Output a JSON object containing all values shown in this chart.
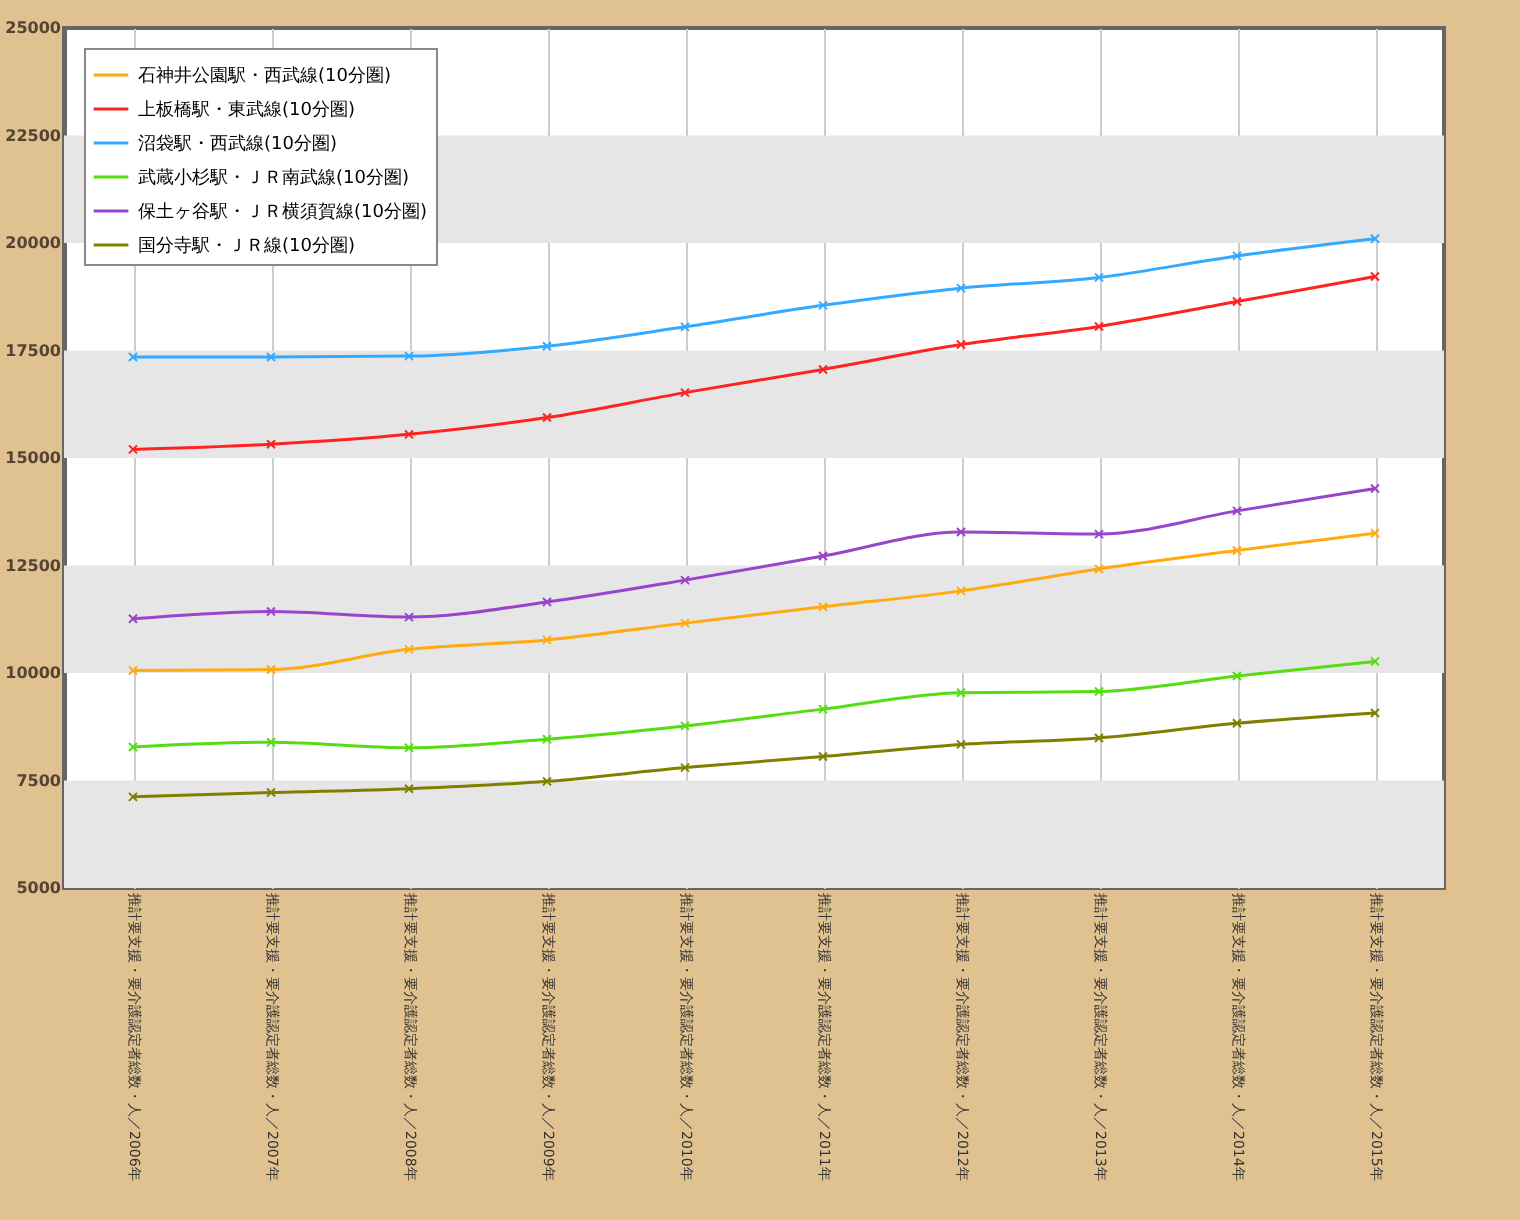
{
  "chart_data": {
    "type": "line",
    "categories": [
      "推計要支援・要介護認定者総数・人／2006年",
      "推計要支援・要介護認定者総数・人／2007年",
      "推計要支援・要介護認定者総数・人／2008年",
      "推計要支援・要介護認定者総数・人／2009年",
      "推計要支援・要介護認定者総数・人／2010年",
      "推計要支援・要介護認定者総数・人／2011年",
      "推計要支援・要介護認定者総数・人／2012年",
      "推計要支援・要介護認定者総数・人／2013年",
      "推計要支援・要介護認定者総数・人／2014年",
      "推計要支援・要介護認定者総数・人／2015年"
    ],
    "series": [
      {
        "name": "石神井公園駅・西武線(10分圏)",
        "color": "#ffaa11",
        "values": [
          10060,
          10080,
          10550,
          10770,
          11160,
          11540,
          11910,
          12420,
          12850,
          13250
        ]
      },
      {
        "name": "上板橋駅・東武線(10分圏)",
        "color": "#ff2222",
        "values": [
          15200,
          15320,
          15550,
          15940,
          16520,
          17060,
          17640,
          18060,
          18640,
          19220
        ]
      },
      {
        "name": "沼袋駅・西武線(10分圏)",
        "color": "#33aaff",
        "values": [
          17350,
          17350,
          17370,
          17600,
          18050,
          18550,
          18950,
          19200,
          19700,
          20100
        ]
      },
      {
        "name": "武蔵小杉駅・ＪＲ南武線(10分圏)",
        "color": "#55dd11",
        "values": [
          8280,
          8390,
          8260,
          8460,
          8770,
          9160,
          9540,
          9570,
          9930,
          10270
        ]
      },
      {
        "name": "保土ヶ谷駅・ＪＲ横須賀線(10分圏)",
        "color": "#9944cc",
        "values": [
          11260,
          11430,
          11300,
          11650,
          12160,
          12720,
          13280,
          13230,
          13770,
          14290
        ]
      },
      {
        "name": "国分寺駅・ＪＲ線(10分圏)",
        "color": "#808000",
        "values": [
          7120,
          7220,
          7310,
          7480,
          7800,
          8060,
          8340,
          8490,
          8830,
          9070
        ]
      }
    ],
    "ylim": [
      5000,
      25000
    ],
    "yticks": [
      5000,
      7500,
      10000,
      12500,
      15000,
      17500,
      20000,
      22500,
      25000
    ],
    "bands": [
      {
        "axis": "y",
        "from": 5000,
        "to": 7500,
        "color": "#e6e6e6"
      },
      {
        "axis": "y",
        "from": 10000,
        "to": 12500,
        "color": "#e6e6e6"
      },
      {
        "axis": "y",
        "from": 15000,
        "to": 17500,
        "color": "#e6e6e6"
      },
      {
        "axis": "y",
        "from": 20000,
        "to": 22500,
        "color": "#e6e6e6"
      }
    ],
    "grid": "x",
    "legend": "top left",
    "marker": "cross",
    "line_style": "solid"
  }
}
